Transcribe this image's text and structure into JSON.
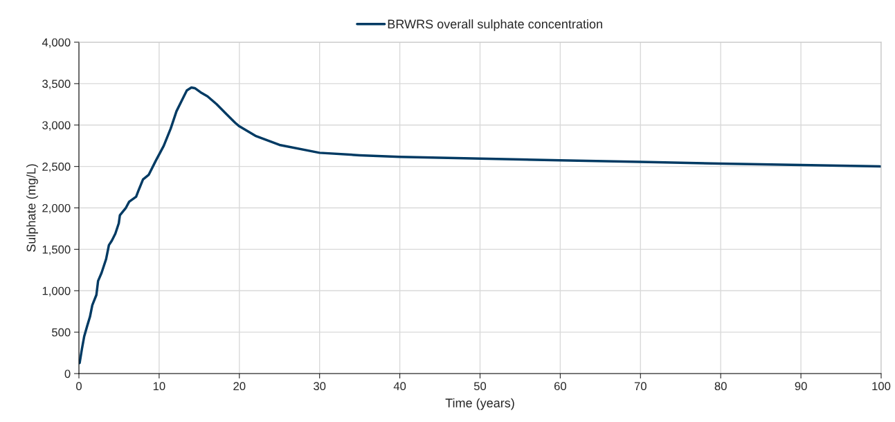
{
  "chart_data": {
    "type": "line",
    "xlabel": "Time (years)",
    "ylabel": "Sulphate (mg/L)",
    "xlim": [
      0,
      100
    ],
    "xticks": [
      0,
      10,
      20,
      30,
      40,
      50,
      60,
      70,
      80,
      90,
      100
    ],
    "ylim": [
      0,
      4000
    ],
    "yticks": [
      {
        "value": 0,
        "label": "0"
      },
      {
        "value": 500,
        "label": "500"
      },
      {
        "value": 1000,
        "label": "1,000"
      },
      {
        "value": 1500,
        "label": "1,500"
      },
      {
        "value": 2000,
        "label": "2,000"
      },
      {
        "value": 2500,
        "label": "2,500"
      },
      {
        "value": 3000,
        "label": "3,000"
      },
      {
        "value": 3500,
        "label": "3,500"
      },
      {
        "value": 4000,
        "label": "4,000"
      }
    ],
    "grid": true,
    "legend": "top",
    "marker": "none",
    "line_style": "solid",
    "series": [
      {
        "name": "BRWRS overall sulphate concentration",
        "color": "#003a63",
        "x": [
          0.09,
          0.37,
          0.66,
          1.03,
          1.38,
          1.67,
          2.18,
          2.39,
          2.82,
          3.39,
          3.74,
          4.11,
          4.54,
          4.97,
          5.11,
          5.83,
          6.26,
          7.13,
          7.41,
          7.99,
          8.71,
          9.57,
          10.57,
          11.44,
          12.16,
          12.87,
          13.45,
          14.02,
          14.45,
          15.17,
          16.03,
          17.18,
          18.33,
          19.48,
          20,
          22,
          25,
          30,
          35,
          40,
          50,
          60,
          70,
          80,
          90,
          100
        ],
        "values": [
          128,
          295,
          449,
          574,
          686,
          825,
          950,
          1118,
          1215,
          1382,
          1550,
          1605,
          1689,
          1814,
          1912,
          1996,
          2074,
          2135,
          2205,
          2344,
          2400,
          2567,
          2748,
          2957,
          3166,
          3305,
          3417,
          3453,
          3445,
          3395,
          3347,
          3250,
          3138,
          3027,
          2985,
          2870,
          2760,
          2665,
          2635,
          2615,
          2595,
          2575,
          2555,
          2535,
          2517,
          2500
        ]
      }
    ]
  }
}
